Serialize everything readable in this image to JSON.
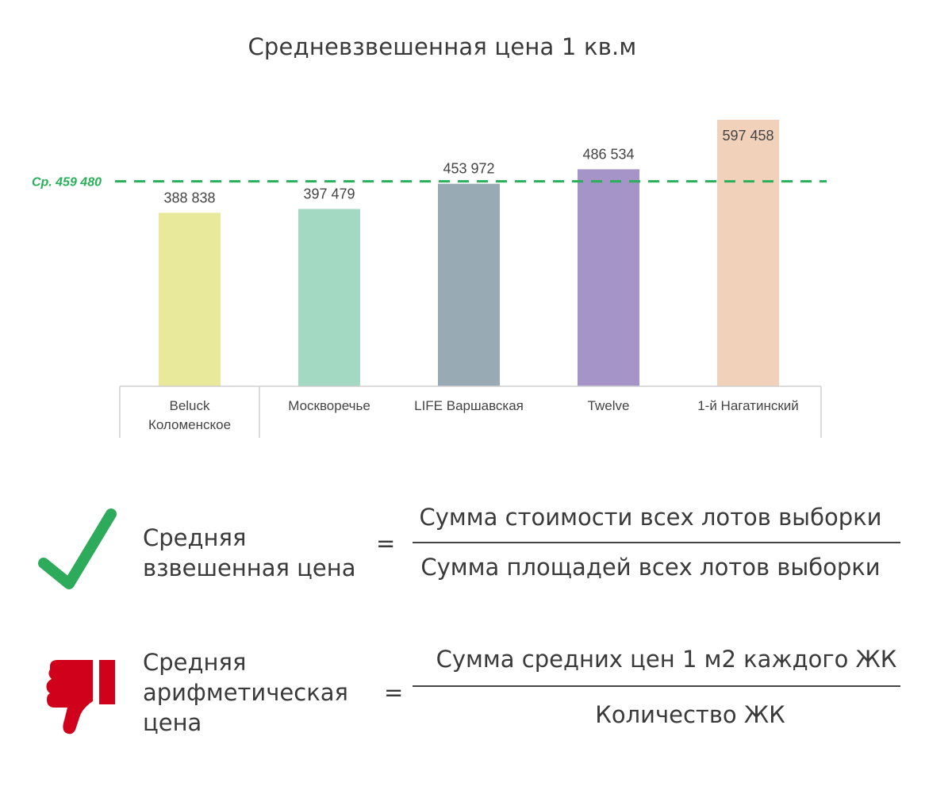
{
  "chart_data": {
    "type": "bar",
    "title": "Средневзвешенная цена 1 кв.м",
    "categories": [
      [
        "Beluck",
        "Коломенское"
      ],
      [
        "Москворечье"
      ],
      [
        "LIFE Варшавская"
      ],
      [
        "Twelve"
      ],
      [
        "1-й Нагатинский"
      ]
    ],
    "values": [
      388838,
      397479,
      453972,
      486534,
      597458
    ],
    "value_labels": [
      "388 838",
      "397 479",
      "453 972",
      "486 534",
      "597 458"
    ],
    "colors": [
      "#e8e99a",
      "#a3d9c2",
      "#98aab4",
      "#a594c7",
      "#f2d1bb"
    ],
    "ylim": [
      0,
      597458
    ],
    "reference_line": {
      "value": 459480,
      "label": "Ср. 459 480",
      "color": "#2bb05a",
      "style": "dashed"
    },
    "xlabel": "",
    "ylabel": ""
  },
  "formulas": [
    {
      "icon": "check-icon",
      "icon_color": "#2eaa5b",
      "label_lines": [
        "Средняя",
        "взвешенная цена"
      ],
      "equals": "=",
      "numerator": "Сумма стоимости всех лотов выборки",
      "denominator": "Сумма площадей всех лотов выборки"
    },
    {
      "icon": "thumbs-down-icon",
      "icon_color": "#d0021b",
      "label_lines": [
        "Средняя",
        "арифметическая",
        "цена"
      ],
      "equals": "=",
      "numerator": "Сумма средних цен 1 м2 каждого ЖК",
      "denominator": "Количество ЖК"
    }
  ]
}
